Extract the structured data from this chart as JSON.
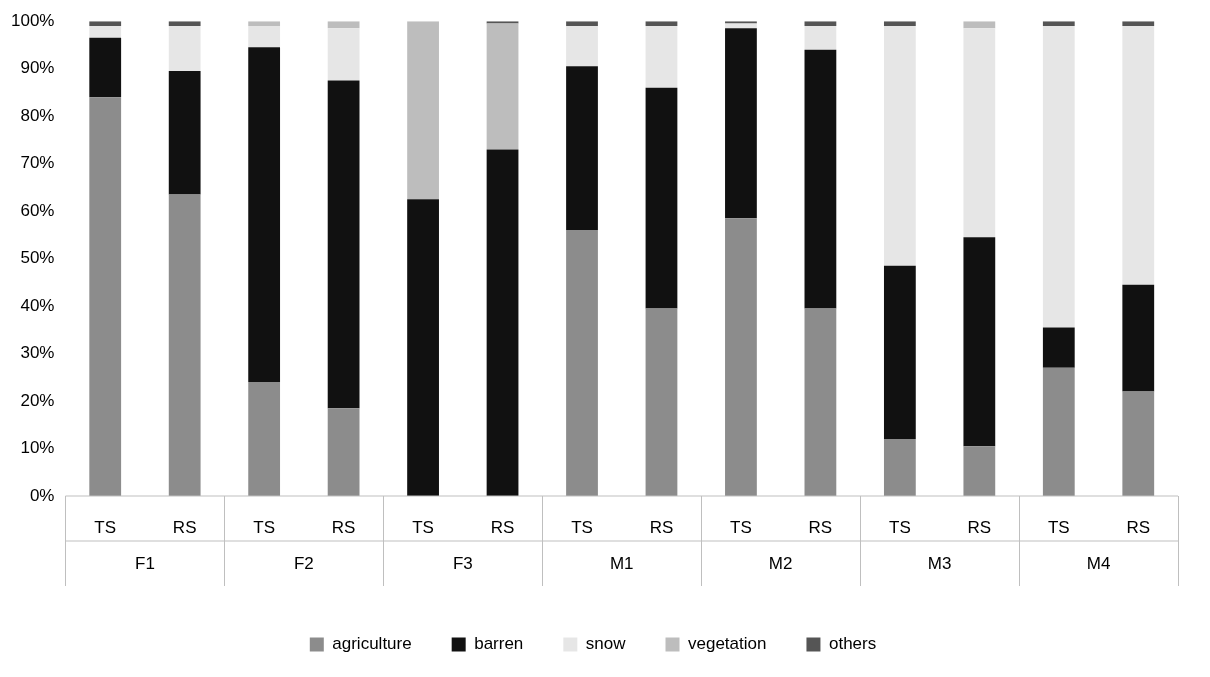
{
  "chart_data": {
    "type": "bar",
    "stacked": true,
    "categories": [
      "TS",
      "RS",
      "TS",
      "RS",
      "TS",
      "RS",
      "TS",
      "RS",
      "TS",
      "RS",
      "TS",
      "RS",
      "TS",
      "RS"
    ],
    "annotations": [
      "F1",
      "F2",
      "F3",
      "M1",
      "M2",
      "M3",
      "M4"
    ],
    "series": [
      {
        "name": "agriculture",
        "color": "#8c8c8c",
        "values": [
          84,
          63.5,
          24,
          18.5,
          0,
          0,
          56,
          39.5,
          58.5,
          39.5,
          12,
          10.5,
          27,
          22
        ]
      },
      {
        "name": "barren",
        "color": "#111111",
        "values": [
          12.5,
          26,
          70.5,
          69,
          62.5,
          73,
          34.5,
          46.5,
          40,
          54.5,
          36.5,
          44,
          8.5,
          22.5
        ]
      },
      {
        "name": "snow",
        "color": "#e6e6e6",
        "values": [
          2.5,
          9.5,
          4.5,
          11,
          0,
          0,
          8.5,
          13,
          1,
          5,
          50.5,
          44,
          63.5,
          54.5
        ]
      },
      {
        "name": "vegetation",
        "color": "#bdbdbd",
        "values": [
          0,
          0,
          1,
          1.5,
          37.5,
          26.5,
          0,
          0,
          0,
          0,
          0,
          1.5,
          0,
          0
        ]
      },
      {
        "name": "others",
        "color": "#555555",
        "values": [
          1,
          1,
          0,
          0,
          0,
          0.5,
          1,
          1,
          0.5,
          1,
          1,
          0,
          1,
          1
        ]
      }
    ],
    "ylim": [
      0,
      100
    ],
    "yticks": [
      {
        "value": 0,
        "label": "0%"
      },
      {
        "value": 10,
        "label": "10%"
      },
      {
        "value": 20,
        "label": "20%"
      },
      {
        "value": 30,
        "label": "30%"
      },
      {
        "value": 40,
        "label": "40%"
      },
      {
        "value": 50,
        "label": "50%"
      },
      {
        "value": 60,
        "label": "60%"
      },
      {
        "value": 70,
        "label": "70%"
      },
      {
        "value": 80,
        "label": "80%"
      },
      {
        "value": 90,
        "label": "90%"
      },
      {
        "value": 100,
        "label": "100%"
      }
    ],
    "legend": "bottom"
  }
}
